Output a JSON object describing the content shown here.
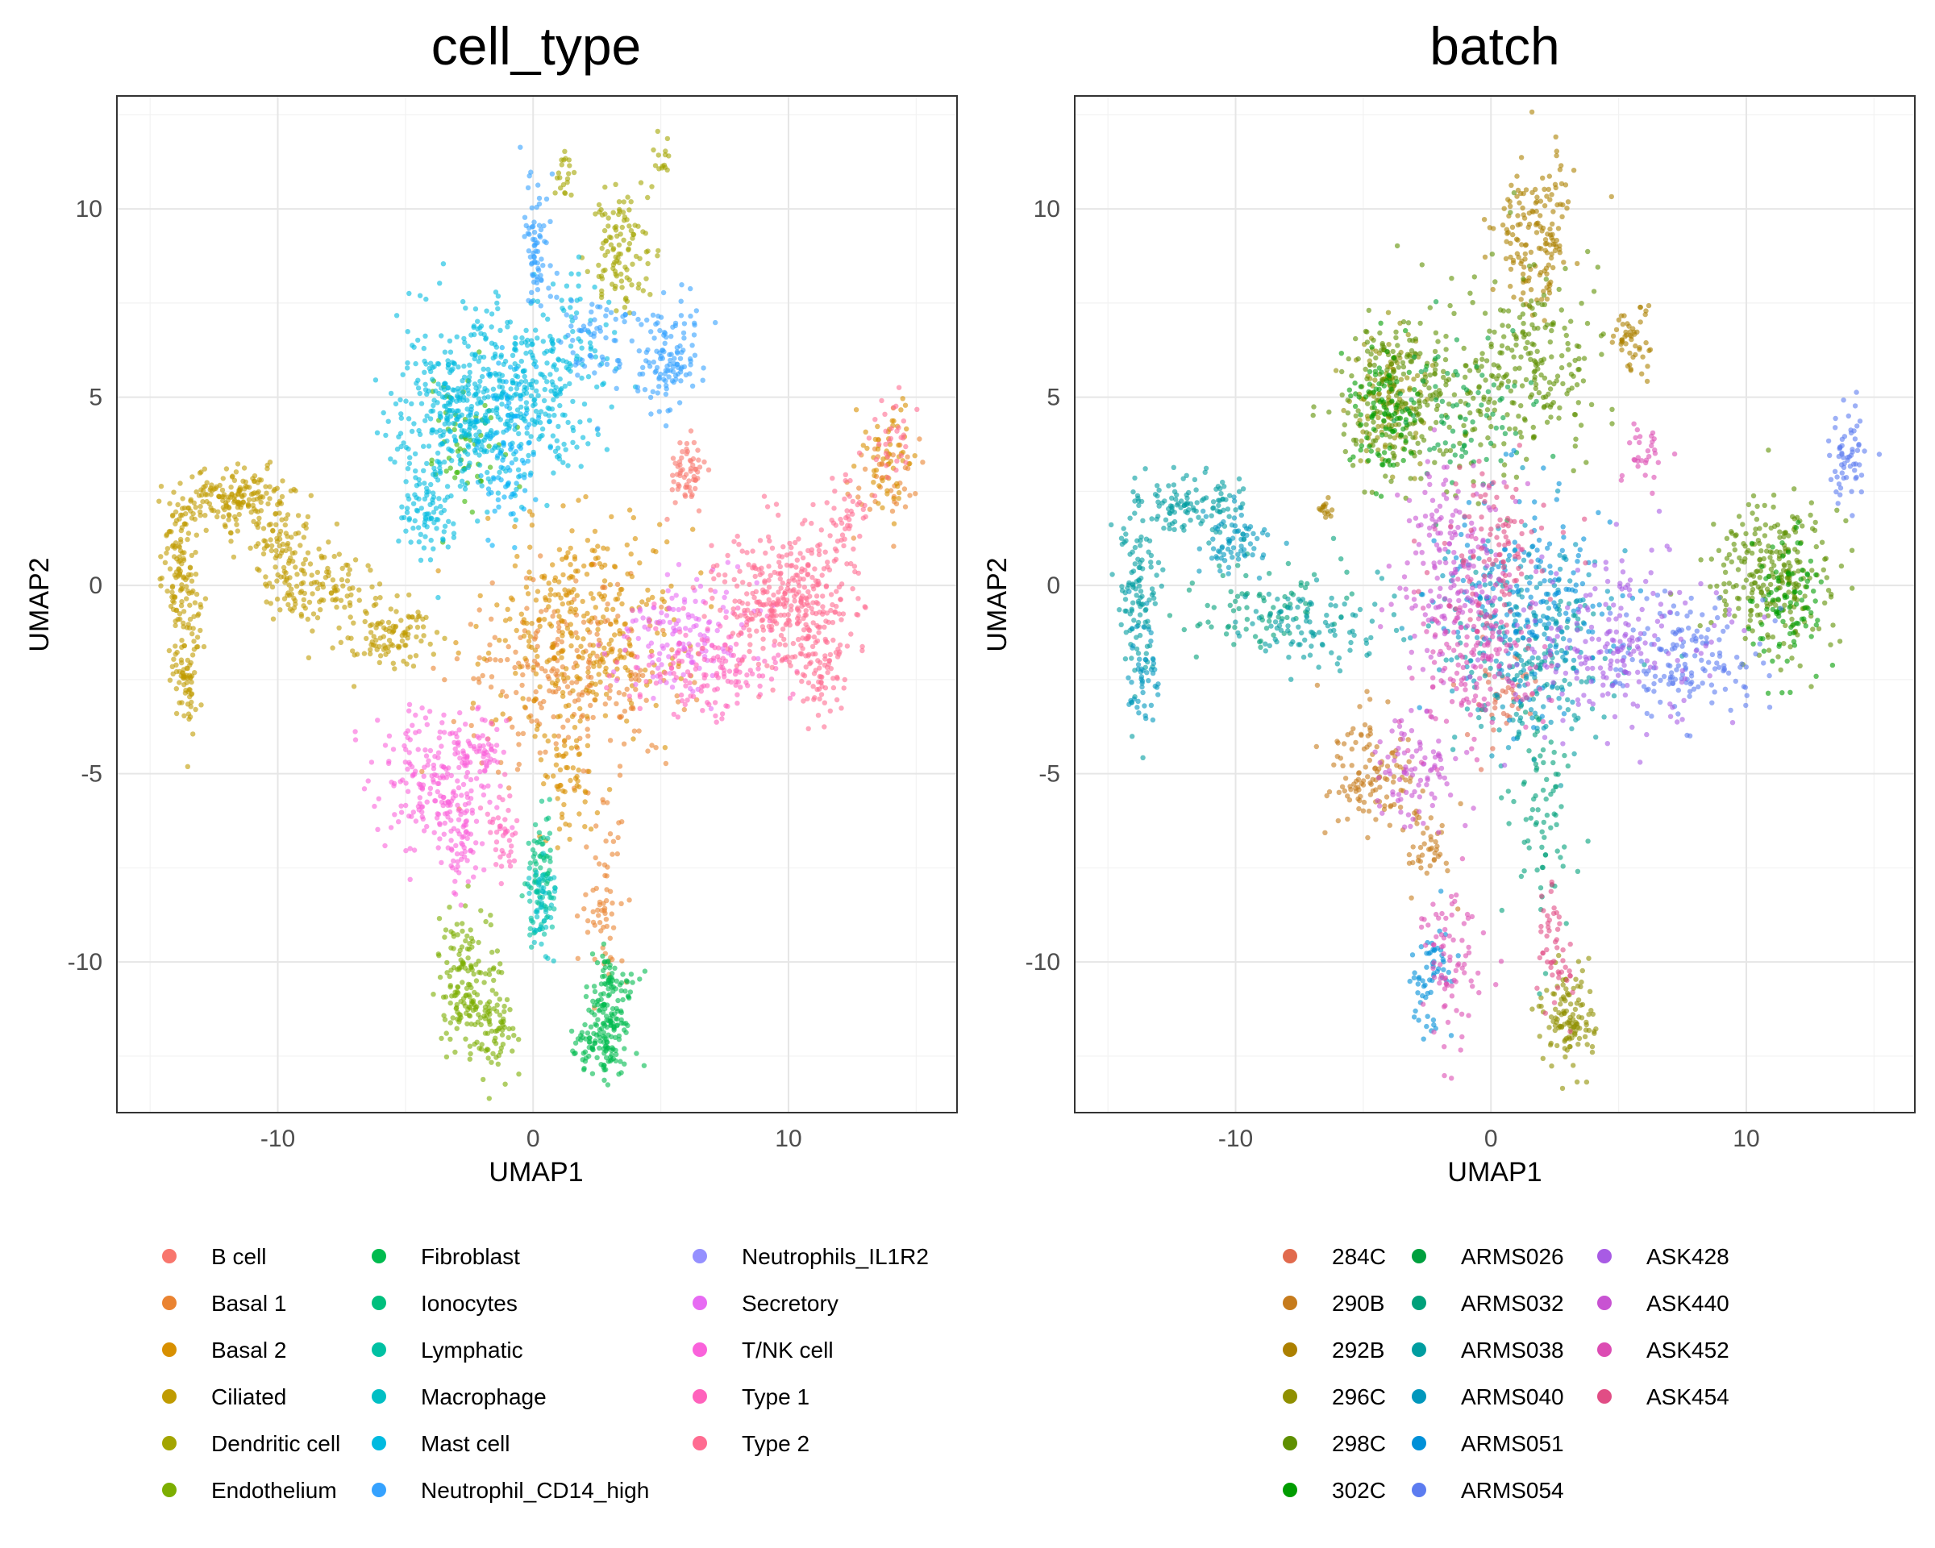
{
  "chart_data": [
    {
      "type": "scatter",
      "title": "cell_type",
      "xlabel": "UMAP1",
      "ylabel": "UMAP2",
      "xlim": [
        -16.3,
        16.6
      ],
      "ylim": [
        -14.0,
        13.0
      ],
      "xticks": [
        -10,
        0,
        10
      ],
      "yticks": [
        -10,
        -5,
        0,
        5,
        10
      ],
      "xtick_labels": [
        "-10",
        "0",
        "10"
      ],
      "ytick_labels": [
        "-10",
        "-5",
        "0",
        "5",
        "10"
      ],
      "grid": true,
      "legend_position": "bottom",
      "series": [
        {
          "name": "B cell",
          "color": "#F8766D",
          "clusters": [
            [
              6.0,
              3.0,
              0.5,
              0.6,
              60
            ]
          ]
        },
        {
          "name": "Basal 1",
          "color": "#EA8331",
          "clusters": [
            [
              1.5,
              -2.5,
              3.0,
              1.6,
              260
            ],
            [
              2.8,
              -8.5,
              0.6,
              1.4,
              60
            ],
            [
              13.8,
              2.8,
              0.9,
              0.9,
              40
            ]
          ]
        },
        {
          "name": "Basal 2",
          "color": "#D89000",
          "clusters": [
            [
              2.0,
              -1.0,
              2.6,
              2.0,
              330
            ],
            [
              14.0,
              3.5,
              0.6,
              1.0,
              60
            ],
            [
              1.3,
              -5.2,
              0.6,
              1.2,
              60
            ]
          ]
        },
        {
          "name": "Ciliated",
          "color": "#C09B00",
          "clusters": [
            [
              -11.5,
              2.3,
              1.5,
              0.5,
              180
            ],
            [
              -13.8,
              0.2,
              0.5,
              1.6,
              140
            ],
            [
              -13.6,
              -2.4,
              0.35,
              1.0,
              60
            ],
            [
              -8.5,
              0.0,
              1.6,
              0.6,
              120
            ],
            [
              -5.5,
              -1.3,
              1.4,
              0.7,
              110
            ],
            [
              -9.8,
              1.1,
              0.9,
              0.5,
              60
            ]
          ]
        },
        {
          "name": "Dendritic cell",
          "color": "#A3A500",
          "clusters": [
            [
              3.4,
              8.9,
              0.8,
              1.0,
              110
            ],
            [
              5.0,
              11.3,
              0.25,
              0.35,
              15
            ],
            [
              1.2,
              10.8,
              0.25,
              0.5,
              20
            ]
          ]
        },
        {
          "name": "Endothelium",
          "color": "#7CAE00",
          "clusters": [
            [
              -2.7,
              -10.5,
              0.7,
              1.3,
              150
            ],
            [
              -1.5,
              -11.7,
              0.5,
              0.8,
              70
            ]
          ]
        },
        {
          "name": "Fibroblast",
          "color": "#39B600",
          "clusters": [
            [
              -2.7,
              3.8,
              1.0,
              1.4,
              60
            ]
          ]
        },
        {
          "name": "Ionocytes",
          "color": "#00BB4E",
          "clusters": [
            [
              3.0,
              -11.3,
              0.6,
              1.0,
              160
            ],
            [
              2.4,
              -12.3,
              0.5,
              0.5,
              50
            ]
          ]
        },
        {
          "name": "Lymphatic",
          "color": "#00BF7D",
          "clusters": [
            [
              0.3,
              -7.3,
              0.35,
              0.9,
              50
            ]
          ]
        },
        {
          "name": "Macrophage",
          "color": "#00C1A3",
          "clusters": [
            [
              0.3,
              -8.5,
              0.4,
              0.8,
              45
            ]
          ]
        },
        {
          "name": "Mast cell",
          "color": "#00BFC4",
          "clusters": [
            [
              0.4,
              -8.4,
              0.35,
              0.8,
              40
            ]
          ]
        },
        {
          "name": "Neutrophil_CD14_high",
          "color": "#00BAE0",
          "clusters": [
            [
              -2.6,
              4.8,
              1.8,
              1.6,
              420
            ],
            [
              -4.0,
              2.0,
              0.9,
              0.9,
              90
            ],
            [
              0.5,
              5.5,
              1.6,
              1.6,
              220
            ]
          ]
        },
        {
          "name": "Neutrophils_IL1R2",
          "color": "#00B0F6",
          "clusters": [
            [
              -1.0,
              3.5,
              1.0,
              1.5,
              90
            ]
          ]
        },
        {
          "name": "Neutrophil_CD14_high",
          "color": "#35A2FF",
          "clusters": [
            [
              5.3,
              6.0,
              0.8,
              0.9,
              120
            ],
            [
              0.1,
              9.0,
              0.4,
              1.2,
              70
            ],
            [
              2.5,
              6.5,
              1.0,
              0.8,
              60
            ]
          ]
        },
        {
          "name": "Secretory",
          "color": "#E76BF3",
          "clusters": [
            [
              6.0,
              -1.3,
              1.8,
              1.1,
              140
            ]
          ]
        },
        {
          "name": "T/NK cell",
          "color": "#FA62DB",
          "clusters": [
            [
              -3.8,
              -5.2,
              1.6,
              1.1,
              200
            ],
            [
              -2.7,
              -6.9,
              0.6,
              0.9,
              60
            ],
            [
              -2.0,
              -4.4,
              0.7,
              0.6,
              50
            ]
          ]
        },
        {
          "name": "Type 1",
          "color": "#FF62BC",
          "clusters": [
            [
              7.0,
              -2.3,
              2.0,
              0.9,
              150
            ],
            [
              -1.3,
              -6.5,
              0.5,
              0.8,
              40
            ]
          ]
        },
        {
          "name": "Type 2",
          "color": "#FF6C91",
          "clusters": [
            [
              10.0,
              -0.4,
              1.6,
              1.3,
              360
            ],
            [
              11.3,
              -2.5,
              0.6,
              0.8,
              60
            ],
            [
              14.0,
              4.0,
              0.5,
              0.7,
              30
            ],
            [
              12.3,
              1.8,
              0.6,
              0.8,
              40
            ]
          ]
        }
      ],
      "legend": [
        [
          "B cell",
          "Basal 1",
          "Basal 2",
          "Ciliated",
          "Dendritic cell",
          "Endothelium"
        ],
        [
          "Fibroblast",
          "Ionocytes",
          "Lymphatic",
          "Macrophage",
          "Mast cell",
          "Neutrophil_CD14_high"
        ],
        [
          "Neutrophils_IL1R2",
          "Secretory",
          "T/NK cell",
          "Type 1",
          "Type 2"
        ]
      ],
      "legend_colors": [
        [
          "#F8766D",
          "#EA8331",
          "#D89000",
          "#C09B00",
          "#A3A500",
          "#7CAE00"
        ],
        [
          "#00BB4E",
          "#00BF7D",
          "#00C1A3",
          "#00BFC4",
          "#00BAE0",
          "#35A2FF"
        ],
        [
          "#9590FF",
          "#E76BF3",
          "#FA62DB",
          "#FF62BC",
          "#FF6C91"
        ]
      ]
    },
    {
      "type": "scatter",
      "title": "batch",
      "xlabel": "UMAP1",
      "ylabel": "UMAP2",
      "xlim": [
        -16.3,
        16.6
      ],
      "ylim": [
        -14.0,
        13.0
      ],
      "xticks": [
        -10,
        0,
        10
      ],
      "yticks": [
        -10,
        -5,
        0,
        5,
        10
      ],
      "xtick_labels": [
        "-10",
        "0",
        "10"
      ],
      "ytick_labels": [
        "-10",
        "-5",
        "0",
        "5",
        "10"
      ],
      "grid": true,
      "legend_position": "bottom",
      "series": [
        {
          "name": "284C",
          "color": "#E16A4D",
          "clusters": [
            [
              0.5,
              -3.0,
              1.2,
              1.0,
              40
            ]
          ]
        },
        {
          "name": "290B",
          "color": "#C67B1C",
          "clusters": [
            [
              -4.8,
              -5.0,
              1.2,
              1.0,
              120
            ],
            [
              -2.5,
              -7.0,
              0.6,
              0.8,
              40
            ]
          ]
        },
        {
          "name": "292B",
          "color": "#AC8000",
          "clusters": [
            [
              -6.5,
              2.0,
              0.15,
              0.2,
              15
            ],
            [
              1.8,
              9.5,
              1.0,
              1.3,
              160
            ],
            [
              5.5,
              6.5,
              0.5,
              0.6,
              50
            ]
          ]
        },
        {
          "name": "296C",
          "color": "#8F8F00",
          "clusters": [
            [
              3.0,
              -11.5,
              0.7,
              1.0,
              120
            ],
            [
              -4.0,
              5.0,
              1.2,
              1.2,
              120
            ]
          ]
        },
        {
          "name": "298C",
          "color": "#5E8F00",
          "clusters": [
            [
              -3.0,
              5.0,
              2.0,
              1.5,
              260
            ],
            [
              11.0,
              0.3,
              1.5,
              1.4,
              260
            ],
            [
              1.5,
              6.0,
              1.8,
              1.8,
              200
            ]
          ]
        },
        {
          "name": "302C",
          "color": "#009C00",
          "clusters": [
            [
              -4.2,
              4.5,
              1.0,
              1.2,
              100
            ],
            [
              11.5,
              -0.5,
              0.9,
              1.2,
              90
            ]
          ]
        },
        {
          "name": "ARMS026",
          "color": "#00A03E",
          "clusters": [
            [
              -1.0,
              4.5,
              1.5,
              1.5,
              80
            ]
          ]
        },
        {
          "name": "ARMS032",
          "color": "#00A07A",
          "clusters": [
            [
              2.0,
              -6.0,
              0.8,
              2.0,
              80
            ],
            [
              -9.0,
              -0.5,
              2.0,
              0.8,
              80
            ]
          ]
        },
        {
          "name": "ARMS038",
          "color": "#009DA0",
          "clusters": [
            [
              -11.8,
              2.1,
              1.4,
              0.5,
              110
            ],
            [
              -13.8,
              0.0,
              0.5,
              1.8,
              110
            ],
            [
              2.0,
              -2.0,
              2.0,
              1.5,
              160
            ],
            [
              -7.0,
              -1.0,
              1.8,
              0.8,
              100
            ]
          ]
        },
        {
          "name": "ARMS040",
          "color": "#0097BC",
          "clusters": [
            [
              -13.6,
              -2.5,
              0.4,
              1.0,
              50
            ],
            [
              1.0,
              -1.0,
              2.0,
              1.8,
              160
            ],
            [
              -10.0,
              1.2,
              1.0,
              0.6,
              70
            ]
          ]
        },
        {
          "name": "ARMS051",
          "color": "#0090D8",
          "clusters": [
            [
              1.5,
              0.0,
              2.2,
              2.0,
              160
            ],
            [
              -2.3,
              -10.5,
              0.6,
              1.0,
              60
            ]
          ]
        },
        {
          "name": "ARMS054",
          "color": "#5C7CF0",
          "clusters": [
            [
              7.5,
              -2.0,
              2.0,
              1.0,
              160
            ],
            [
              14.0,
              3.5,
              0.6,
              0.9,
              60
            ]
          ]
        },
        {
          "name": "ASK428",
          "color": "#A85BE4",
          "clusters": [
            [
              5.0,
              -1.5,
              2.5,
              1.5,
              200
            ]
          ]
        },
        {
          "name": "ASK440",
          "color": "#C853D2",
          "clusters": [
            [
              -1.5,
              0.5,
              1.5,
              2.0,
              180
            ],
            [
              -3.0,
              -5.0,
              1.2,
              1.0,
              90
            ]
          ]
        },
        {
          "name": "ASK452",
          "color": "#DC4CB3",
          "clusters": [
            [
              -0.5,
              -2.0,
              1.5,
              1.5,
              160
            ],
            [
              -1.5,
              -10.0,
              0.8,
              1.5,
              80
            ],
            [
              6.0,
              3.5,
              0.5,
              0.6,
              30
            ]
          ]
        },
        {
          "name": "ASK454",
          "color": "#E14D85",
          "clusters": [
            [
              0.0,
              1.0,
              1.5,
              1.5,
              100
            ],
            [
              2.5,
              -9.5,
              0.5,
              1.5,
              50
            ]
          ]
        }
      ],
      "legend": [
        [
          "284C",
          "290B",
          "292B",
          "296C",
          "298C",
          "302C"
        ],
        [
          "ARMS026",
          "ARMS032",
          "ARMS038",
          "ARMS040",
          "ARMS051",
          "ARMS054"
        ],
        [
          "ASK428",
          "ASK440",
          "ASK452",
          "ASK454"
        ]
      ],
      "legend_colors": [
        [
          "#E16A4D",
          "#C67B1C",
          "#AC8000",
          "#8F8F00",
          "#5E8F00",
          "#009C00"
        ],
        [
          "#00A03E",
          "#00A07A",
          "#009DA0",
          "#0097BC",
          "#0090D8",
          "#5C7CF0"
        ],
        [
          "#A85BE4",
          "#C853D2",
          "#DC4CB3",
          "#E14D85"
        ]
      ]
    }
  ]
}
